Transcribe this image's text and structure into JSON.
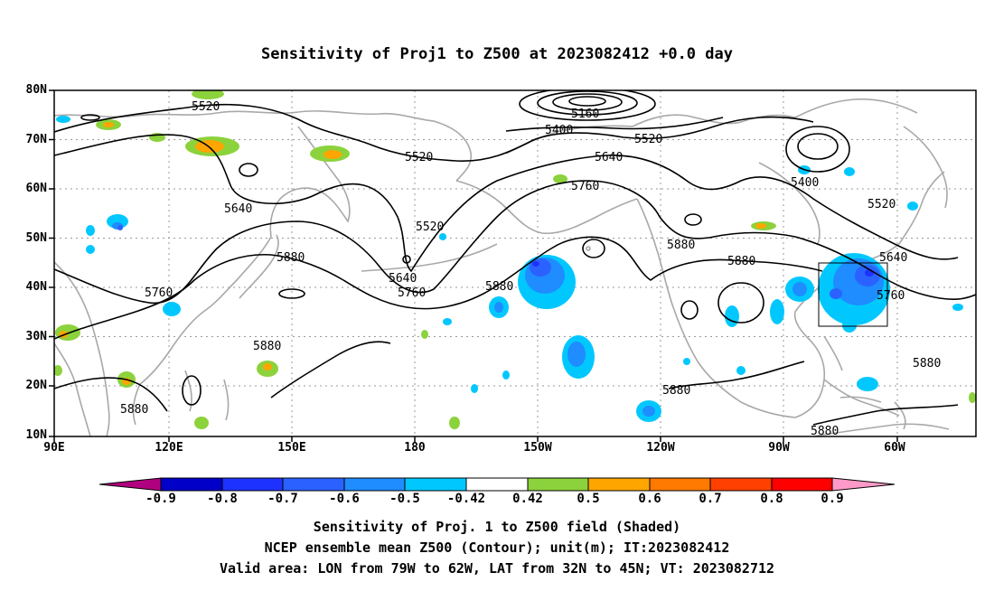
{
  "title": "Sensitivity of Proj1 to Z500 at 2023082412 +0.0 day",
  "axes": {
    "lat_ticks": [
      "80N",
      "70N",
      "60N",
      "50N",
      "40N",
      "30N",
      "20N",
      "10N"
    ],
    "lon_ticks": [
      "90E",
      "120E",
      "150E",
      "180",
      "150W",
      "120W",
      "90W",
      "60W"
    ]
  },
  "contour_labels": [
    "5520",
    "5160",
    "5400",
    "5520",
    "5520",
    "5640",
    "5760",
    "5400",
    "5640",
    "5520",
    "5520",
    "5640",
    "5760",
    "5880",
    "5760",
    "5880",
    "5880",
    "5640",
    "5760",
    "5880",
    "5880",
    "5880",
    "5880",
    "5880"
  ],
  "valid_area_box": {
    "lon_from": "79W",
    "lon_to": "62W",
    "lat_from": "32N",
    "lat_to": "45N"
  },
  "colorbar": {
    "labels": [
      "-0.9",
      "-0.8",
      "-0.7",
      "-0.6",
      "-0.5",
      "-0.42",
      "0.42",
      "0.5",
      "0.6",
      "0.7",
      "0.8",
      "0.9"
    ],
    "colors": [
      "#b0007f",
      "#0000c8",
      "#1e32ff",
      "#2b62ff",
      "#1f8cff",
      "#00c8ff",
      "#ffffff",
      "#8cd23c",
      "#ffa500",
      "#ff7a00",
      "#ff4000",
      "#ff0000",
      "#ff9ac8"
    ]
  },
  "footer": {
    "line1": "Sensitivity of Proj. 1 to Z500 field (Shaded)",
    "line2": "NCEP ensemble mean Z500 (Contour); unit(m); IT:2023082412",
    "line3": "Valid area: LON from 79W to 62W, LAT from 32N to 45N; VT: 2023082712"
  }
}
